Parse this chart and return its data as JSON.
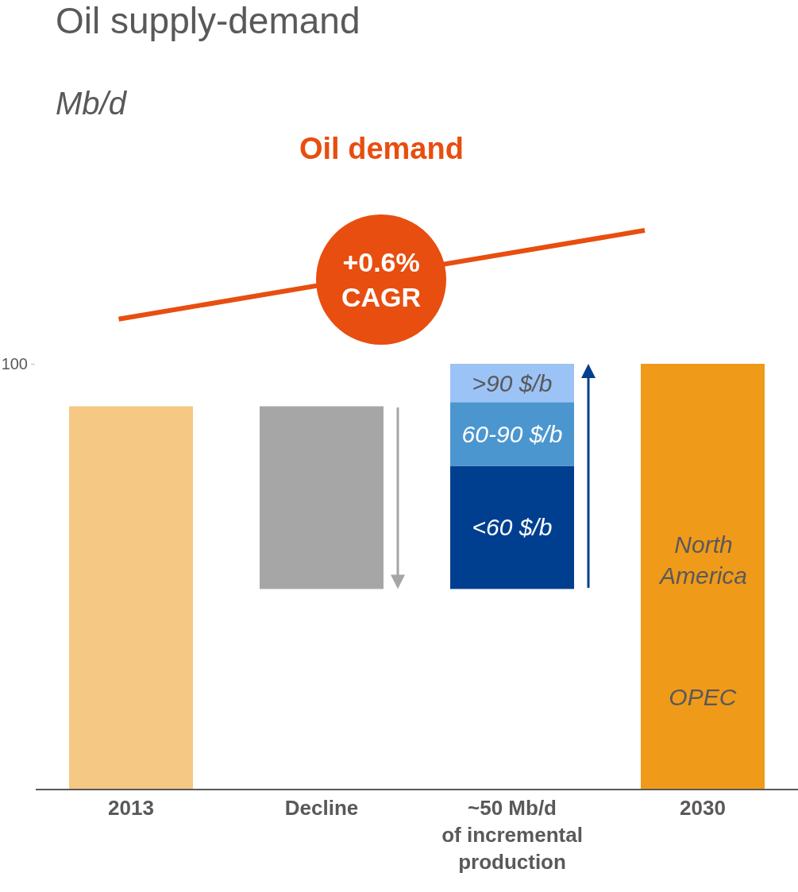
{
  "chart_data": {
    "type": "bar",
    "title": "Oil supply-demand",
    "subtitle": "Mb/d",
    "categories": [
      "2013",
      "Decline",
      "~50 Mb/d\nof incremental\nproduction",
      "2030"
    ],
    "ylim": [
      0,
      100
    ],
    "yticks": [
      100
    ],
    "series": [
      {
        "values": [
          90,
          43,
          29,
          43
        ],
        "base": [
          0,
          47,
          47,
          0
        ],
        "colors": [
          "#f5c983",
          "#a6a6a6",
          "#003f8f",
          "#f09a1a"
        ],
        "value_labels": [
          null,
          null,
          "<60 $/b",
          "OPEC"
        ]
      },
      {
        "values": [
          null,
          null,
          15,
          21.5
        ],
        "base": [
          null,
          null,
          76,
          43
        ],
        "colors": [
          null,
          null,
          "#4b96cf",
          "#f09a1a"
        ],
        "value_labels": [
          null,
          null,
          "60-90 $/b",
          "North\nAmerica"
        ]
      },
      {
        "values": [
          null,
          null,
          9,
          35.5
        ],
        "base": [
          null,
          null,
          91,
          64.5
        ],
        "colors": [
          null,
          null,
          "#9cc3f5",
          "#f09a1a"
        ],
        "value_labels": [
          null,
          null,
          ">90 $/b",
          null
        ]
      }
    ],
    "annotations": [
      "Oil demand",
      "+0.6%\nCAGR"
    ]
  }
}
